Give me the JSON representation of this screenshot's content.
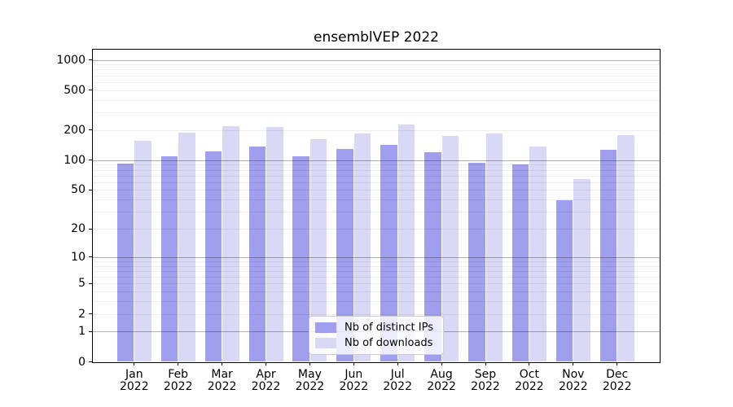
{
  "chart_data": {
    "type": "bar",
    "title": "ensemblVEP 2022",
    "categories": [
      "Jan 2022",
      "Feb 2022",
      "Mar 2022",
      "Apr 2022",
      "May 2022",
      "Jun 2022",
      "Jul 2022",
      "Aug 2022",
      "Sep 2022",
      "Oct 2022",
      "Nov 2022",
      "Dec 2022"
    ],
    "series": [
      {
        "name": "Nb of distinct IPs",
        "color": "#9f9fee",
        "values": [
          93,
          110,
          122,
          136,
          109,
          129,
          143,
          120,
          94,
          91,
          39,
          128
        ]
      },
      {
        "name": "Nb of downloads",
        "color": "#d9d9f6",
        "values": [
          157,
          187,
          217,
          214,
          163,
          186,
          226,
          175,
          186,
          137,
          64,
          178
        ]
      }
    ],
    "xlabel": "",
    "ylabel": "",
    "yscale": "log1p",
    "ylim": [
      0,
      1250
    ],
    "yticks": [
      0,
      1,
      2,
      5,
      10,
      20,
      50,
      100,
      200,
      500,
      1000
    ],
    "grid": "both",
    "legend_position": "lower center",
    "grid_colors": {
      "major": "rgba(0,0,0,0.30)",
      "minor": "rgba(0,0,0,0.07)"
    }
  }
}
